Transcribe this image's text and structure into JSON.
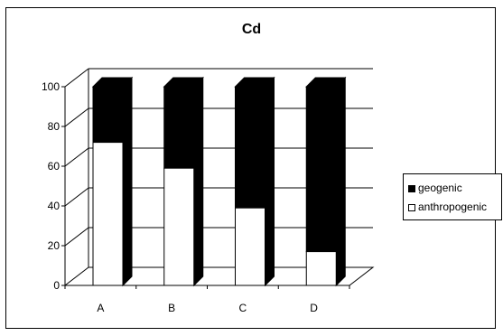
{
  "chart_data": {
    "type": "bar",
    "stacked": true,
    "style": "3d",
    "title": "Cd",
    "categories": [
      "A",
      "B",
      "C",
      "D"
    ],
    "series": [
      {
        "name": "anthropogenic",
        "values": [
          72,
          59,
          39,
          17
        ],
        "color": "#ffffff"
      },
      {
        "name": "geogenic",
        "values": [
          28,
          41,
          61,
          83
        ],
        "color": "#000000"
      }
    ],
    "ylim": [
      0,
      100
    ],
    "yticks": [
      0,
      20,
      40,
      60,
      80,
      100
    ],
    "grid": true,
    "legend_position": "right"
  }
}
